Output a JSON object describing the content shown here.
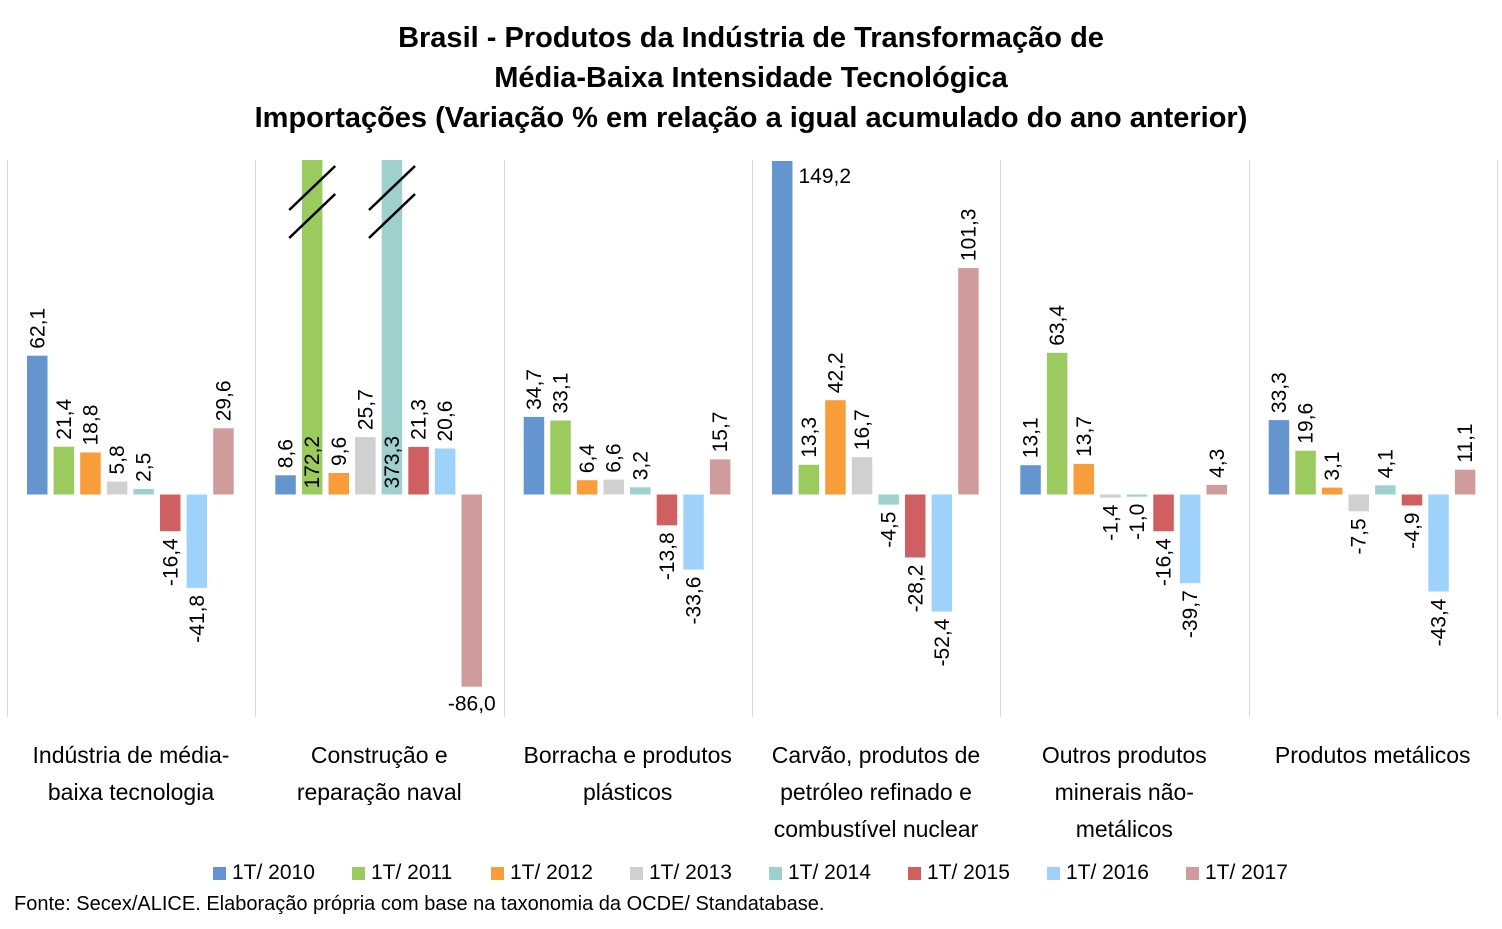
{
  "chart_data": {
    "type": "bar",
    "title": [
      "Brasil - Produtos da Indústria de Transformação de",
      "Média-Baixa Intensidade Tecnológica",
      "Importações (Variação % em relação a igual acumulado do ano anterior)"
    ],
    "categories": [
      [
        "Indústria de média-",
        "baixa tecnologia"
      ],
      [
        "Construção e",
        "reparação naval"
      ],
      [
        "Borracha e produtos",
        "plásticos"
      ],
      [
        "Carvão, produtos de",
        "petróleo refinado e",
        "combustível nuclear"
      ],
      [
        "Outros produtos",
        "minerais não-",
        "metálicos"
      ],
      [
        "Produtos metálicos"
      ]
    ],
    "series": [
      {
        "name": "1T/ 2010",
        "color": "#6495CF",
        "values": [
          62.1,
          8.6,
          34.7,
          149.2,
          13.1,
          33.3
        ]
      },
      {
        "name": "1T/ 2011",
        "color": "#9BCB5F",
        "values": [
          21.4,
          172.2,
          33.1,
          13.3,
          63.4,
          19.6
        ]
      },
      {
        "name": "1T/ 2012",
        "color": "#F99D3A",
        "values": [
          18.8,
          9.6,
          6.4,
          42.2,
          13.7,
          3.1
        ]
      },
      {
        "name": "1T/ 2013",
        "color": "#D0D0D0",
        "values": [
          5.8,
          25.7,
          6.6,
          16.7,
          -1.4,
          -7.5
        ]
      },
      {
        "name": "1T/ 2014",
        "color": "#9ED0CE",
        "values": [
          2.5,
          373.3,
          3.2,
          -4.5,
          -1.0,
          4.1
        ]
      },
      {
        "name": "1T/ 2015",
        "color": "#D05F61",
        "values": [
          -16.4,
          21.3,
          -13.8,
          -28.2,
          -16.4,
          -4.9
        ]
      },
      {
        "name": "1T/ 2016",
        "color": "#9FD2FB",
        "values": [
          -41.8,
          20.6,
          -33.6,
          -52.4,
          -39.7,
          -43.4
        ]
      },
      {
        "name": "1T/ 2017",
        "color": "#CF9B9B",
        "values": [
          29.6,
          -86.0,
          15.7,
          101.3,
          4.3,
          11.1
        ]
      }
    ],
    "data_labels": [
      [
        "62,1",
        "21,4",
        "18,8",
        "5,8",
        "2,5",
        "-16,4",
        "-41,8",
        "29,6"
      ],
      [
        "8,6",
        "172,2",
        "9,6",
        "25,7",
        "373,3",
        "21,3",
        "20,6",
        "-86,0"
      ],
      [
        "34,7",
        "33,1",
        "6,4",
        "6,6",
        "3,2",
        "-13,8",
        "-33,6",
        "15,7"
      ],
      [
        "149,2",
        "13,3",
        "42,2",
        "16,7",
        "-4,5",
        "-28,2",
        "-52,4",
        "101,3"
      ],
      [
        "13,1",
        "63,4",
        "13,7",
        "-1,4",
        "-1,0",
        "-16,4",
        "-39,7",
        "4,3"
      ],
      [
        "33,3",
        "19,6",
        "3,1",
        "-7,5",
        "4,1",
        "-4,9",
        "-43,4",
        "11,1"
      ]
    ],
    "ylim": [
      -100,
      150
    ],
    "axis_break": "bars for 1T/ 2011 and 1T/ 2014 in Construção e reparação naval are truncated with break marks",
    "legend_position": "bottom",
    "grid": false
  },
  "source": "Fonte: Secex/ALICE. Elaboração própria com base na taxonomia da OCDE/ Standatabase."
}
